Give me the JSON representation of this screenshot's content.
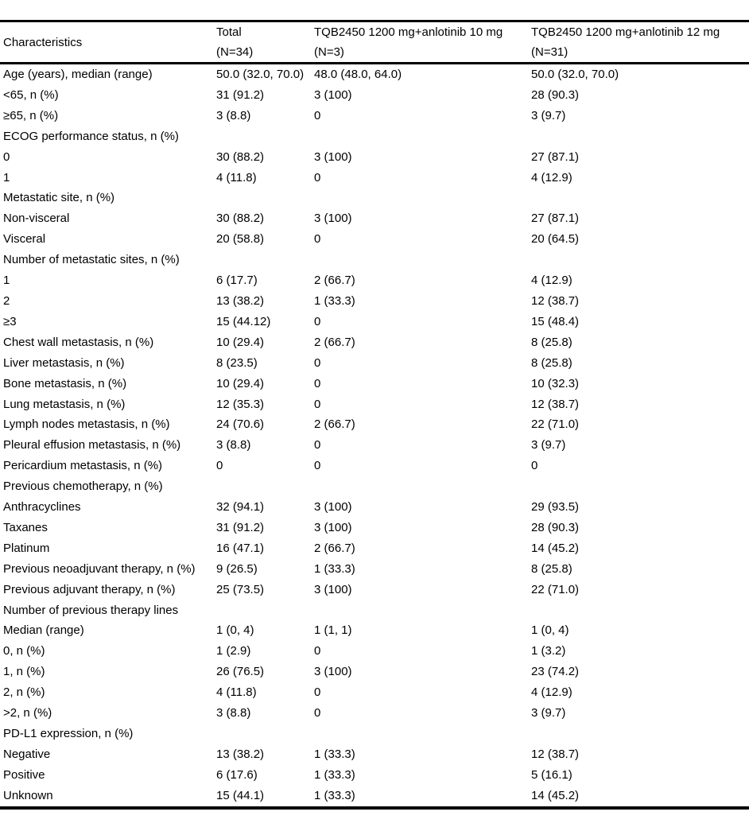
{
  "table": {
    "columns": [
      {
        "label": "Characteristics",
        "sublabel": ""
      },
      {
        "label": "Total",
        "sublabel": "(N=34)"
      },
      {
        "label": "TQB2450 1200 mg+anlotinib 10 mg",
        "sublabel": "(N=3)"
      },
      {
        "label": "TQB2450 1200 mg+anlotinib 12 mg",
        "sublabel": "(N=31)"
      }
    ],
    "rows": [
      {
        "label": "Age (years), median (range)",
        "total": "50.0 (32.0, 70.0)",
        "arm10": "48.0 (48.0, 64.0)",
        "arm12": "50.0 (32.0, 70.0)"
      },
      {
        "label": "<65, n (%)",
        "total": "31 (91.2)",
        "arm10": "3 (100)",
        "arm12": "28 (90.3)"
      },
      {
        "label": "≥65, n (%)",
        "total": "3 (8.8)",
        "arm10": "0",
        "arm12": "3 (9.7)"
      },
      {
        "label": "ECOG performance status, n (%)",
        "total": "",
        "arm10": "",
        "arm12": ""
      },
      {
        "label": "0",
        "total": "30 (88.2)",
        "arm10": "3 (100)",
        "arm12": "27 (87.1)"
      },
      {
        "label": "1",
        "total": "4 (11.8)",
        "arm10": "0",
        "arm12": "4 (12.9)"
      },
      {
        "label": "Metastatic site, n (%)",
        "total": "",
        "arm10": "",
        "arm12": ""
      },
      {
        "label": "Non-visceral",
        "total": "30 (88.2)",
        "arm10": "3 (100)",
        "arm12": "27 (87.1)"
      },
      {
        "label": "Visceral",
        "total": "20 (58.8)",
        "arm10": "0",
        "arm12": "20 (64.5)"
      },
      {
        "label": "Number of metastatic sites, n (%)",
        "total": "",
        "arm10": "",
        "arm12": ""
      },
      {
        "label": "1",
        "total": "6 (17.7)",
        "arm10": "2 (66.7)",
        "arm12": "4 (12.9)"
      },
      {
        "label": "2",
        "total": "13 (38.2)",
        "arm10": "1 (33.3)",
        "arm12": "12 (38.7)"
      },
      {
        "label": "≥3",
        "total": "15 (44.12)",
        "arm10": "0",
        "arm12": "15 (48.4)"
      },
      {
        "label": "Chest wall metastasis, n (%)",
        "total": "10 (29.4)",
        "arm10": "2 (66.7)",
        "arm12": "8 (25.8)"
      },
      {
        "label": "Liver metastasis, n (%)",
        "total": "8 (23.5)",
        "arm10": "0",
        "arm12": "8 (25.8)"
      },
      {
        "label": "Bone metastasis, n (%)",
        "total": "10 (29.4)",
        "arm10": "0",
        "arm12": "10 (32.3)"
      },
      {
        "label": "Lung metastasis, n (%)",
        "total": "12 (35.3)",
        "arm10": "0",
        "arm12": "12 (38.7)"
      },
      {
        "label": "Lymph nodes metastasis, n (%)",
        "total": "24 (70.6)",
        "arm10": "2 (66.7)",
        "arm12": "22 (71.0)"
      },
      {
        "label": "Pleural effusion metastasis, n (%)",
        "total": "3 (8.8)",
        "arm10": "0",
        "arm12": "3 (9.7)"
      },
      {
        "label": "Pericardium metastasis, n (%)",
        "total": "0",
        "arm10": "0",
        "arm12": "0"
      },
      {
        "label": "Previous chemotherapy, n (%)",
        "total": "",
        "arm10": "",
        "arm12": ""
      },
      {
        "label": "Anthracyclines",
        "total": "32 (94.1)",
        "arm10": "3 (100)",
        "arm12": "29 (93.5)"
      },
      {
        "label": "Taxanes",
        "total": "31 (91.2)",
        "arm10": "3 (100)",
        "arm12": "28 (90.3)"
      },
      {
        "label": "Platinum",
        "total": "16 (47.1)",
        "arm10": "2 (66.7)",
        "arm12": "14 (45.2)"
      },
      {
        "label": "Previous neoadjuvant therapy, n (%)",
        "total": "9 (26.5)",
        "arm10": "1 (33.3)",
        "arm12": "8 (25.8)"
      },
      {
        "label": "Previous adjuvant therapy, n (%)",
        "total": "25 (73.5)",
        "arm10": "3 (100)",
        "arm12": "22 (71.0)"
      },
      {
        "label": "Number of previous therapy lines",
        "total": "",
        "arm10": "",
        "arm12": ""
      },
      {
        "label": "Median (range)",
        "total": "1 (0, 4)",
        "arm10": "1 (1, 1)",
        "arm12": "1 (0, 4)"
      },
      {
        "label": "0, n (%)",
        "total": "1 (2.9)",
        "arm10": "0",
        "arm12": "1 (3.2)"
      },
      {
        "label": "1, n (%)",
        "total": "26 (76.5)",
        "arm10": "3 (100)",
        "arm12": "23 (74.2)"
      },
      {
        "label": "2, n (%)",
        "total": "4 (11.8)",
        "arm10": "0",
        "arm12": "4 (12.9)"
      },
      {
        "label": ">2, n (%)",
        "total": "3 (8.8)",
        "arm10": "0",
        "arm12": "3 (9.7)"
      },
      {
        "label": "PD-L1 expression, n (%)",
        "total": "",
        "arm10": "",
        "arm12": ""
      },
      {
        "label": "Negative",
        "total": "13 (38.2)",
        "arm10": "1 (33.3)",
        "arm12": "12 (38.7)"
      },
      {
        "label": "Positive",
        "total": "6 (17.6)",
        "arm10": "1 (33.3)",
        "arm12": "5 (16.1)"
      },
      {
        "label": "Unknown",
        "total": "15 (44.1)",
        "arm10": "1 (33.3)",
        "arm12": "14 (45.2)"
      }
    ]
  }
}
